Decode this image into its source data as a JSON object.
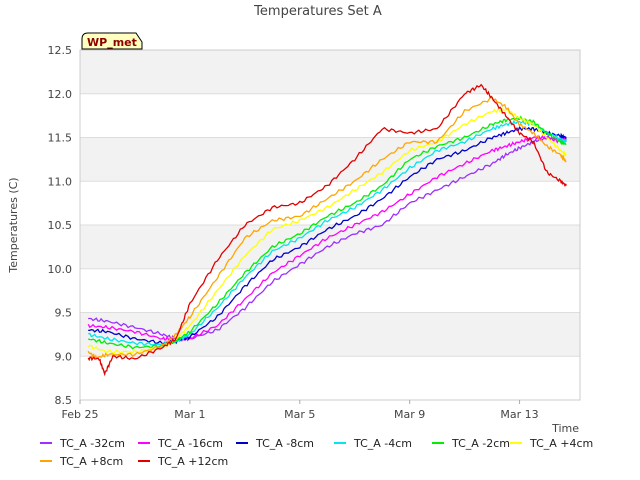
{
  "chart_data": {
    "type": "line",
    "title": "Temperatures Set A",
    "xlabel": "Time",
    "ylabel": "Temperatures (C)",
    "badge": "WP_met",
    "x_ticks": [
      {
        "label": "Feb 25",
        "day": 0
      },
      {
        "label": "Mar 1",
        "day": 4
      },
      {
        "label": "Mar 5",
        "day": 8
      },
      {
        "label": "Mar 9",
        "day": 12
      },
      {
        "label": "Mar 13",
        "day": 16
      }
    ],
    "xlim": [
      0,
      18.2
    ],
    "ylim": [
      8.5,
      12.5
    ],
    "y_ticks": [
      "8.5",
      "9.0",
      "9.5",
      "10.0",
      "10.5",
      "11.0",
      "11.5",
      "12.0",
      "12.5"
    ],
    "grid": true,
    "legend_position": "bottom",
    "series": [
      {
        "name": "TC_A -32cm",
        "color": "#9b30ff",
        "points": [
          [
            0.3,
            9.43
          ],
          [
            1,
            9.4
          ],
          [
            2,
            9.33
          ],
          [
            3,
            9.25
          ],
          [
            3.5,
            9.2
          ],
          [
            4,
            9.2
          ],
          [
            5,
            9.3
          ],
          [
            6,
            9.55
          ],
          [
            7,
            9.85
          ],
          [
            8,
            10.05
          ],
          [
            9,
            10.25
          ],
          [
            10,
            10.4
          ],
          [
            11,
            10.5
          ],
          [
            12,
            10.75
          ],
          [
            13,
            10.9
          ],
          [
            14,
            11.05
          ],
          [
            15,
            11.2
          ],
          [
            15.5,
            11.3
          ],
          [
            16,
            11.38
          ],
          [
            16.5,
            11.45
          ],
          [
            17,
            11.5
          ],
          [
            17.5,
            11.48
          ],
          [
            17.7,
            11.5
          ]
        ]
      },
      {
        "name": "TC_A -16cm",
        "color": "#ff00ff",
        "points": [
          [
            0.3,
            9.35
          ],
          [
            1,
            9.33
          ],
          [
            2,
            9.28
          ],
          [
            3,
            9.2
          ],
          [
            3.5,
            9.2
          ],
          [
            4,
            9.2
          ],
          [
            5,
            9.35
          ],
          [
            6,
            9.65
          ],
          [
            7,
            9.95
          ],
          [
            8,
            10.15
          ],
          [
            9,
            10.35
          ],
          [
            10,
            10.5
          ],
          [
            11,
            10.65
          ],
          [
            12,
            10.85
          ],
          [
            13,
            11.05
          ],
          [
            14,
            11.2
          ],
          [
            15,
            11.35
          ],
          [
            15.5,
            11.4
          ],
          [
            16,
            11.45
          ],
          [
            16.5,
            11.5
          ],
          [
            17,
            11.5
          ],
          [
            17.5,
            11.45
          ],
          [
            17.7,
            11.48
          ]
        ]
      },
      {
        "name": "TC_A -8cm",
        "color": "#0000cd",
        "points": [
          [
            0.3,
            9.3
          ],
          [
            1,
            9.28
          ],
          [
            2,
            9.2
          ],
          [
            3,
            9.15
          ],
          [
            3.5,
            9.17
          ],
          [
            4,
            9.22
          ],
          [
            5,
            9.45
          ],
          [
            6,
            9.8
          ],
          [
            7,
            10.1
          ],
          [
            8,
            10.25
          ],
          [
            9,
            10.45
          ],
          [
            10,
            10.6
          ],
          [
            11,
            10.8
          ],
          [
            12,
            11.05
          ],
          [
            13,
            11.25
          ],
          [
            14,
            11.35
          ],
          [
            15,
            11.5
          ],
          [
            15.5,
            11.55
          ],
          [
            16,
            11.6
          ],
          [
            16.5,
            11.6
          ],
          [
            17,
            11.55
          ],
          [
            17.5,
            11.52
          ],
          [
            17.7,
            11.5
          ]
        ]
      },
      {
        "name": "TC_A -4cm",
        "color": "#00e5ee",
        "points": [
          [
            0.3,
            9.25
          ],
          [
            1,
            9.2
          ],
          [
            2,
            9.15
          ],
          [
            3,
            9.13
          ],
          [
            3.5,
            9.17
          ],
          [
            4,
            9.25
          ],
          [
            5,
            9.55
          ],
          [
            6,
            9.9
          ],
          [
            7,
            10.2
          ],
          [
            8,
            10.35
          ],
          [
            9,
            10.55
          ],
          [
            10,
            10.7
          ],
          [
            11,
            10.9
          ],
          [
            12,
            11.15
          ],
          [
            13,
            11.35
          ],
          [
            14,
            11.45
          ],
          [
            15,
            11.6
          ],
          [
            15.5,
            11.65
          ],
          [
            16,
            11.68
          ],
          [
            16.5,
            11.65
          ],
          [
            17,
            11.55
          ],
          [
            17.5,
            11.48
          ],
          [
            17.7,
            11.45
          ]
        ]
      },
      {
        "name": "TC_A -2cm",
        "color": "#00ee00",
        "points": [
          [
            0.3,
            9.2
          ],
          [
            1,
            9.15
          ],
          [
            2,
            9.1
          ],
          [
            3,
            9.12
          ],
          [
            3.5,
            9.18
          ],
          [
            4,
            9.28
          ],
          [
            5,
            9.6
          ],
          [
            6,
            9.95
          ],
          [
            7,
            10.25
          ],
          [
            8,
            10.4
          ],
          [
            9,
            10.6
          ],
          [
            10,
            10.75
          ],
          [
            11,
            10.95
          ],
          [
            12,
            11.25
          ],
          [
            13,
            11.4
          ],
          [
            14,
            11.5
          ],
          [
            15,
            11.65
          ],
          [
            15.5,
            11.7
          ],
          [
            16,
            11.72
          ],
          [
            16.5,
            11.68
          ],
          [
            17,
            11.55
          ],
          [
            17.5,
            11.45
          ],
          [
            17.7,
            11.42
          ]
        ]
      },
      {
        "name": "TC_A +4cm",
        "color": "#ffff00",
        "points": [
          [
            0.3,
            9.12
          ],
          [
            1,
            9.05
          ],
          [
            2,
            9.05
          ],
          [
            3,
            9.1
          ],
          [
            3.5,
            9.2
          ],
          [
            4,
            9.35
          ],
          [
            5,
            9.75
          ],
          [
            6,
            10.15
          ],
          [
            7,
            10.45
          ],
          [
            8,
            10.55
          ],
          [
            9,
            10.7
          ],
          [
            10,
            10.9
          ],
          [
            11,
            11.1
          ],
          [
            12,
            11.35
          ],
          [
            13,
            11.45
          ],
          [
            14,
            11.65
          ],
          [
            15,
            11.8
          ],
          [
            15.5,
            11.82
          ],
          [
            16,
            11.72
          ],
          [
            16.5,
            11.65
          ],
          [
            17,
            11.5
          ],
          [
            17.5,
            11.35
          ],
          [
            17.7,
            11.3
          ]
        ]
      },
      {
        "name": "TC_A +8cm",
        "color": "#ffa500",
        "points": [
          [
            0.3,
            9.05
          ],
          [
            0.6,
            8.98
          ],
          [
            1,
            9.02
          ],
          [
            2,
            9.02
          ],
          [
            3,
            9.12
          ],
          [
            3.5,
            9.25
          ],
          [
            4,
            9.45
          ],
          [
            5,
            9.9
          ],
          [
            6,
            10.35
          ],
          [
            7,
            10.55
          ],
          [
            8,
            10.6
          ],
          [
            9,
            10.8
          ],
          [
            10,
            11.0
          ],
          [
            11,
            11.25
          ],
          [
            12,
            11.45
          ],
          [
            13,
            11.45
          ],
          [
            14,
            11.8
          ],
          [
            15,
            11.95
          ],
          [
            15.5,
            11.85
          ],
          [
            16,
            11.65
          ],
          [
            16.5,
            11.55
          ],
          [
            17,
            11.4
          ],
          [
            17.5,
            11.3
          ],
          [
            17.7,
            11.22
          ]
        ]
      },
      {
        "name": "TC_A +12cm",
        "color": "#e00000",
        "points": [
          [
            0.3,
            8.98
          ],
          [
            0.7,
            8.97
          ],
          [
            0.9,
            8.8
          ],
          [
            1.2,
            9.0
          ],
          [
            2,
            8.97
          ],
          [
            3,
            9.1
          ],
          [
            3.5,
            9.2
          ],
          [
            4,
            9.6
          ],
          [
            5,
            10.1
          ],
          [
            6,
            10.5
          ],
          [
            7,
            10.7
          ],
          [
            8,
            10.75
          ],
          [
            9,
            10.95
          ],
          [
            10,
            11.25
          ],
          [
            11,
            11.6
          ],
          [
            12,
            11.55
          ],
          [
            13,
            11.6
          ],
          [
            14,
            12.0
          ],
          [
            14.6,
            12.1
          ],
          [
            15,
            11.95
          ],
          [
            15.5,
            11.75
          ],
          [
            16,
            11.55
          ],
          [
            16.5,
            11.45
          ],
          [
            17,
            11.1
          ],
          [
            17.5,
            11.0
          ],
          [
            17.7,
            10.95
          ]
        ]
      }
    ]
  }
}
